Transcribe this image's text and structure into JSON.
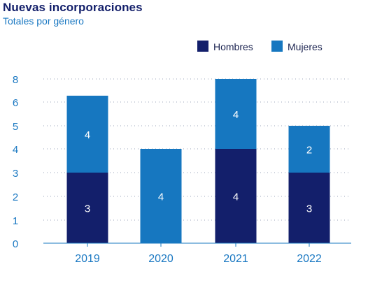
{
  "header": {
    "title": "Nuevas incorporaciones",
    "subtitle": "Totales por género"
  },
  "colors": {
    "hombres": "#131f6b",
    "mujeres": "#1677c0",
    "axis_text": "#1a78c2",
    "grid": "#9aa3b8",
    "label_text": "#ffffff"
  },
  "chart_data": {
    "type": "bar",
    "stacked": true,
    "title": "Nuevas incorporaciones",
    "subtitle": "Totales por género",
    "categories": [
      "2019",
      "2020",
      "2021",
      "2022"
    ],
    "y_ticks": [
      "0",
      "1",
      "2",
      "3",
      "4",
      "5",
      "6",
      "8"
    ],
    "series": [
      {
        "name": "Hombres",
        "values": [
          3,
          0,
          4,
          3
        ],
        "labels": [
          "3",
          "",
          "4",
          "3"
        ]
      },
      {
        "name": "Mujeres",
        "values": [
          4,
          4,
          4,
          2
        ],
        "labels": [
          "4",
          "4",
          "4",
          "2"
        ]
      }
    ],
    "grid": true,
    "legend_position": "top-right"
  }
}
